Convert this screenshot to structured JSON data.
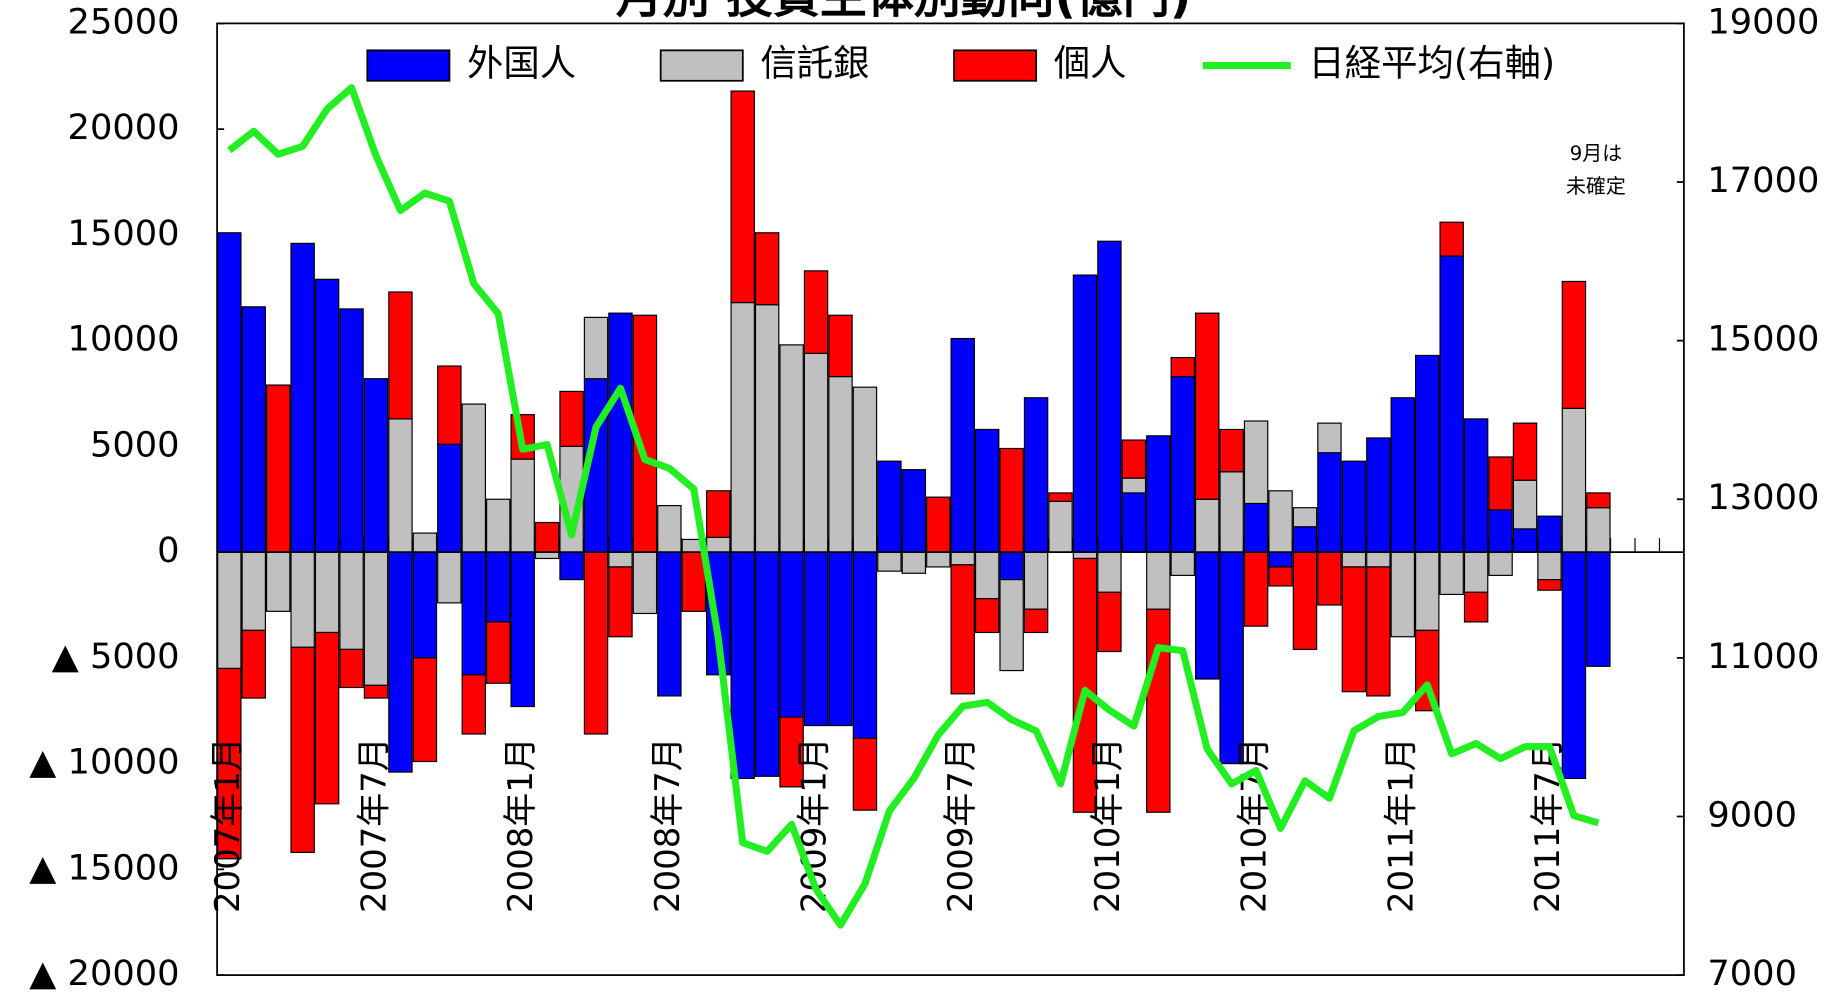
{
  "chart_data": {
    "type": "bar",
    "title": "月別 投資主体別動向(億円)",
    "annotation": [
      "9月は",
      "未確定"
    ],
    "categories": [
      "2007年1月",
      null,
      null,
      null,
      null,
      null,
      "2007年7月",
      null,
      null,
      null,
      null,
      null,
      "2008年1月",
      null,
      null,
      null,
      null,
      null,
      "2008年7月",
      null,
      null,
      null,
      null,
      null,
      "2009年1月",
      null,
      null,
      null,
      null,
      null,
      "2009年7月",
      null,
      null,
      null,
      null,
      null,
      "2010年1月",
      null,
      null,
      null,
      null,
      null,
      "2010年7月",
      null,
      null,
      null,
      null,
      null,
      "2011年1月",
      null,
      null,
      null,
      null,
      null,
      "2011年7月",
      null,
      null,
      null,
      null,
      null
    ],
    "series": [
      {
        "name": "外国人",
        "type": "bar",
        "color": "#0000ff",
        "values": [
          15100,
          11600,
          0,
          14600,
          12900,
          11500,
          8200,
          -10400,
          -5000,
          5100,
          -5800,
          -3300,
          -7300,
          0,
          -1300,
          8200,
          11300,
          0,
          -6800,
          0,
          -5800,
          -10700,
          -10600,
          -7800,
          -8200,
          -8200,
          -8800,
          4300,
          3900,
          0,
          10100,
          5800,
          -1300,
          7300,
          0,
          13100,
          14700,
          2800,
          5500,
          8300,
          -6000,
          -10000,
          2300,
          -700,
          1200,
          4700,
          4300,
          5400,
          7300,
          9300,
          14000,
          6300,
          2000,
          1100,
          1700,
          -10700,
          -5400,
          null,
          null,
          null
        ]
      },
      {
        "name": "信託銀",
        "type": "bar",
        "color": "#c0c0c0",
        "values": [
          -5500,
          -3700,
          -2800,
          -4500,
          -3800,
          -4600,
          -6300,
          6300,
          900,
          -2400,
          7000,
          2500,
          4400,
          -300,
          5000,
          2900,
          -700,
          -2900,
          2200,
          600,
          700,
          11800,
          11700,
          9800,
          9400,
          8300,
          7800,
          -900,
          -1000,
          -700,
          -600,
          -2200,
          -4300,
          -2700,
          2400,
          -300,
          -1900,
          700,
          -2700,
          -1100,
          2500,
          3800,
          3900,
          2900,
          900,
          1400,
          -700,
          -700,
          -4000,
          -3700,
          -2000,
          -1900,
          -1100,
          2300,
          -1300,
          6800,
          2100,
          null,
          null,
          null
        ]
      },
      {
        "name": "個人",
        "type": "bar",
        "color": "#ff0000",
        "values": [
          -9000,
          -3200,
          7900,
          -9700,
          -8100,
          -1800,
          -600,
          6000,
          -4900,
          3700,
          -2800,
          -2900,
          2100,
          1400,
          2600,
          -8600,
          -3300,
          11200,
          0,
          -2800,
          2200,
          10000,
          3400,
          -3300,
          3900,
          2900,
          -3400,
          0,
          0,
          2600,
          -6100,
          -1600,
          4900,
          -1100,
          400,
          -12000,
          -2800,
          1800,
          -9600,
          900,
          8800,
          2000,
          -3500,
          -900,
          -4600,
          -2500,
          -5900,
          -6100,
          0,
          -3800,
          1600,
          -1400,
          2500,
          2700,
          -500,
          6000,
          700,
          null,
          null,
          null
        ]
      },
      {
        "name": "日経平均(右軸)",
        "type": "line",
        "axis": "y2",
        "color": "#22ee22",
        "values": [
          17400,
          17640,
          17350,
          17450,
          17920,
          18190,
          17330,
          16640,
          16860,
          16760,
          15720,
          15340,
          13630,
          13690,
          12550,
          13910,
          14400,
          13500,
          13390,
          13130,
          11250,
          8670,
          8560,
          8900,
          8080,
          7630,
          8150,
          9070,
          9480,
          10030,
          10390,
          10440,
          10220,
          10080,
          9410,
          10590,
          10340,
          10140,
          11130,
          11090,
          9850,
          9410,
          9580,
          8850,
          9450,
          9230,
          10080,
          10260,
          10310,
          10660,
          9790,
          9920,
          9730,
          9880,
          9880,
          9010,
          8920,
          null,
          null,
          null
        ]
      }
    ],
    "ylim": [
      -20000,
      25000
    ],
    "yticks": [
      {
        "value": -20000,
        "label": "▲ 20000"
      },
      {
        "value": -15000,
        "label": "▲ 15000"
      },
      {
        "value": -10000,
        "label": "▲ 10000"
      },
      {
        "value": -5000,
        "label": "▲ 5000"
      },
      0,
      5000,
      10000,
      15000,
      20000,
      25000
    ],
    "y2lim": [
      7000,
      19000
    ],
    "y2ticks": [
      7000,
      9000,
      11000,
      13000,
      15000,
      17000,
      19000
    ],
    "legend": "top"
  }
}
